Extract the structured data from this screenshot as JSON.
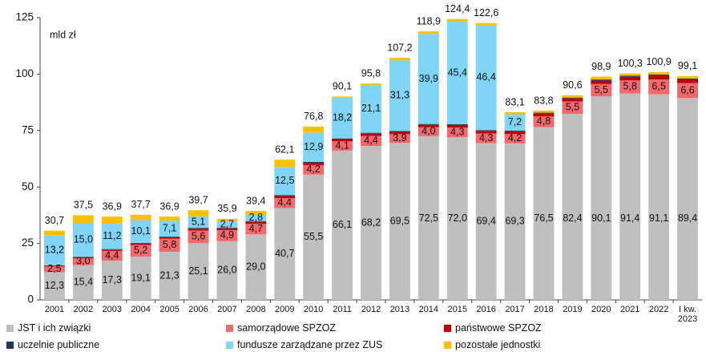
{
  "chart_data": {
    "type": "stacked_bar",
    "unit_label": "mld zł",
    "categories": [
      "2001",
      "2002",
      "2003",
      "2004",
      "2005",
      "2006",
      "2007",
      "2008",
      "2009",
      "2010",
      "2011",
      "2012",
      "2013",
      "2014",
      "2015",
      "2016",
      "2017",
      "2018",
      "2019",
      "2020",
      "2021",
      "2022",
      "I kw. 2023"
    ],
    "ylim": [
      0,
      125
    ],
    "yticks": [
      0,
      25,
      50,
      75,
      100,
      125
    ],
    "grid": false,
    "legend": "bottom",
    "series": [
      {
        "name": "JST i ich związki",
        "color": "#bfbfbf",
        "values": [
          12.3,
          15.4,
          17.3,
          19.1,
          21.3,
          25.1,
          26.0,
          29.0,
          40.7,
          55.5,
          66.1,
          68.2,
          69.5,
          72.5,
          72.0,
          69.4,
          69.3,
          76.5,
          82.4,
          90.1,
          91.4,
          91.1,
          89.4
        ],
        "value_labels": [
          "12,3",
          "15,4",
          "17,3",
          "19,1",
          "21,3",
          "25,1",
          "26,0",
          "29,0",
          "40,7",
          "55,5",
          "66,1",
          "68,2",
          "69,5",
          "72,5",
          "72,0",
          "69,4",
          "69,3",
          "76,5",
          "82,4",
          "90,1",
          "91,4",
          "91,1",
          "89,4"
        ]
      },
      {
        "name": "samorządowe SPZOZ",
        "color": "#f2686b",
        "values": [
          2.5,
          3.0,
          4.4,
          5.2,
          5.8,
          5.6,
          4.9,
          4.7,
          4.4,
          4.2,
          4.1,
          4.4,
          3.9,
          4.0,
          4.3,
          4.3,
          4.2,
          4.8,
          5.5,
          5.5,
          5.8,
          6.5,
          6.6
        ],
        "value_labels": [
          "2,5",
          "3,0",
          "4,4",
          "5,2",
          "5,8",
          "5,6",
          "4,9",
          "4,7",
          "4,4",
          "4,2",
          "4,1",
          "4,4",
          "3,9",
          "4,0",
          "4,3",
          "4,3",
          "4,2",
          "4,8",
          "5,5",
          "5,5",
          "5,8",
          "6,5",
          "6,6"
        ]
      },
      {
        "name": "państwowe SPZOZ",
        "color": "#c00000",
        "values": [
          0.4,
          0.5,
          0.6,
          0.6,
          0.6,
          0.8,
          0.7,
          0.8,
          0.9,
          1.0,
          1.0,
          1.0,
          1.0,
          1.0,
          1.1,
          1.1,
          1.1,
          1.2,
          1.3,
          1.5,
          1.6,
          1.7,
          1.5
        ]
      },
      {
        "name": "uczelnie publiczne",
        "color": "#1f3864",
        "values": [
          0.1,
          0.2,
          0.2,
          0.3,
          0.3,
          0.4,
          0.3,
          0.4,
          0.4,
          0.4,
          0.3,
          0.4,
          0.4,
          0.4,
          0.4,
          0.4,
          0.4,
          0.4,
          0.4,
          0.5,
          0.5,
          0.5,
          0.5
        ]
      },
      {
        "name": "fundusze zarządzane przez ZUS",
        "color": "#80d4f6",
        "values": [
          13.2,
          15.0,
          11.2,
          10.1,
          7.1,
          5.1,
          2.7,
          2.8,
          12.5,
          12.9,
          18.2,
          21.1,
          31.3,
          39.9,
          45.4,
          46.4,
          7.2,
          0,
          0,
          0,
          0,
          0,
          0
        ],
        "value_labels": [
          "13,2",
          "15,0",
          "11,2",
          "10,1",
          "7,1",
          "5,1",
          "2,7",
          "2,8",
          "12,5",
          "12,9",
          "18,2",
          "21,1",
          "31,3",
          "39,9",
          "45,4",
          "46,4",
          "7,2",
          null,
          null,
          null,
          null,
          null,
          null
        ]
      },
      {
        "name": "pozostałe jednostki",
        "color": "#ffc000",
        "values": [
          2.2,
          3.4,
          3.2,
          2.4,
          1.8,
          2.7,
          1.3,
          1.7,
          3.2,
          2.8,
          0.4,
          0.7,
          1.1,
          1.1,
          1.2,
          1.0,
          0.9,
          0.9,
          1.0,
          1.3,
          1.0,
          1.1,
          1.1
        ]
      }
    ],
    "totals": [
      30.7,
      37.5,
      36.9,
      37.7,
      36.9,
      39.7,
      35.9,
      39.4,
      62.1,
      76.8,
      90.1,
      95.8,
      107.2,
      118.9,
      124.4,
      122.6,
      83.1,
      83.8,
      90.6,
      98.9,
      100.3,
      100.9,
      99.1
    ],
    "total_labels": [
      "30,7",
      "37,5",
      "36,9",
      "37,7",
      "36,9",
      "39,7",
      "35,9",
      "39,4",
      "62,1",
      "76,8",
      "90,1",
      "95,8",
      "107,2",
      "118,9",
      "124,4",
      "122,6",
      "83,1",
      "83,8",
      "90,6",
      "98,9",
      "100,3",
      "100,9",
      "99,1"
    ]
  }
}
